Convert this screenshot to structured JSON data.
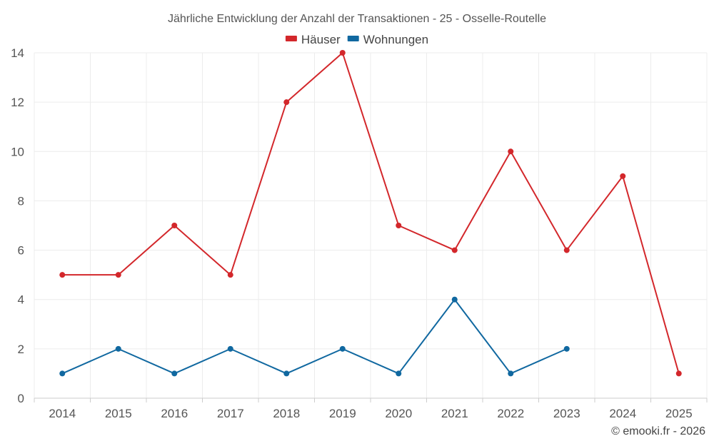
{
  "chart_data": {
    "type": "line",
    "title": "Jährliche Entwicklung der Anzahl der Transaktionen - 25 - Osselle-Routelle",
    "categories": [
      "2014",
      "2015",
      "2016",
      "2017",
      "2018",
      "2019",
      "2020",
      "2021",
      "2022",
      "2023",
      "2024",
      "2025"
    ],
    "series": [
      {
        "name": "Häuser",
        "color": "#d3272b",
        "values": [
          5,
          5,
          7,
          5,
          12,
          14,
          7,
          6,
          10,
          6,
          9,
          1
        ]
      },
      {
        "name": "Wohnungen",
        "color": "#1068a0",
        "values": [
          1,
          2,
          1,
          2,
          1,
          2,
          1,
          4,
          1,
          2,
          null,
          null
        ]
      }
    ],
    "yticks": [
      0,
      2,
      4,
      6,
      8,
      10,
      12,
      14
    ],
    "ylim": [
      0,
      14
    ],
    "grid": true,
    "legend": "top-center"
  },
  "credit": "© emooki.fr - 2026"
}
